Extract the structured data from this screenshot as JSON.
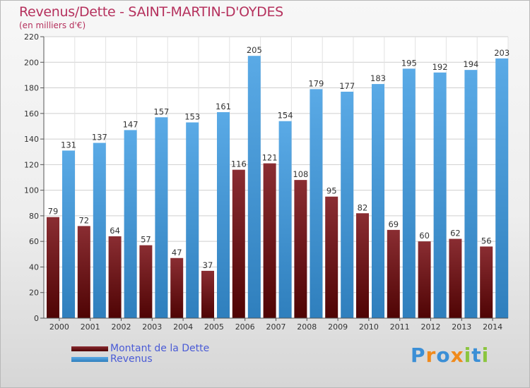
{
  "page": {
    "title": "Revenus/Dette - SAINT-MARTIN-D'OYDES",
    "subtitle": "(en milliers d'€)",
    "logo_text": "Proxiti"
  },
  "colors": {
    "title": "#b5315d",
    "debt_top": "#8a2d32",
    "debt_bottom": "#4f0404",
    "revenue_top": "#5aaae6",
    "revenue_bottom": "#2f7fbd",
    "legend_text": "#4a5bd6",
    "axis_text": "#333333"
  },
  "chart_data": {
    "type": "bar",
    "title": "Revenus/Dette - SAINT-MARTIN-D'OYDES",
    "subtitle": "(en milliers d'€)",
    "categories": [
      "2000",
      "2001",
      "2002",
      "2003",
      "2004",
      "2005",
      "2006",
      "2007",
      "2008",
      "2009",
      "2010",
      "2011",
      "2012",
      "2013",
      "2014"
    ],
    "series": [
      {
        "name": "Montant de la Dette",
        "values": [
          79,
          72,
          64,
          57,
          47,
          37,
          116,
          121,
          108,
          95,
          82,
          69,
          60,
          62,
          56
        ]
      },
      {
        "name": "Revenus",
        "values": [
          131,
          137,
          147,
          157,
          153,
          161,
          205,
          154,
          179,
          177,
          183,
          195,
          192,
          194,
          203
        ]
      }
    ],
    "ylim": [
      0,
      220
    ],
    "yticks": [
      0,
      20,
      40,
      60,
      80,
      100,
      120,
      140,
      160,
      180,
      200,
      220
    ],
    "grid": true,
    "legend_position": "bottom-left",
    "data_labels": true
  }
}
